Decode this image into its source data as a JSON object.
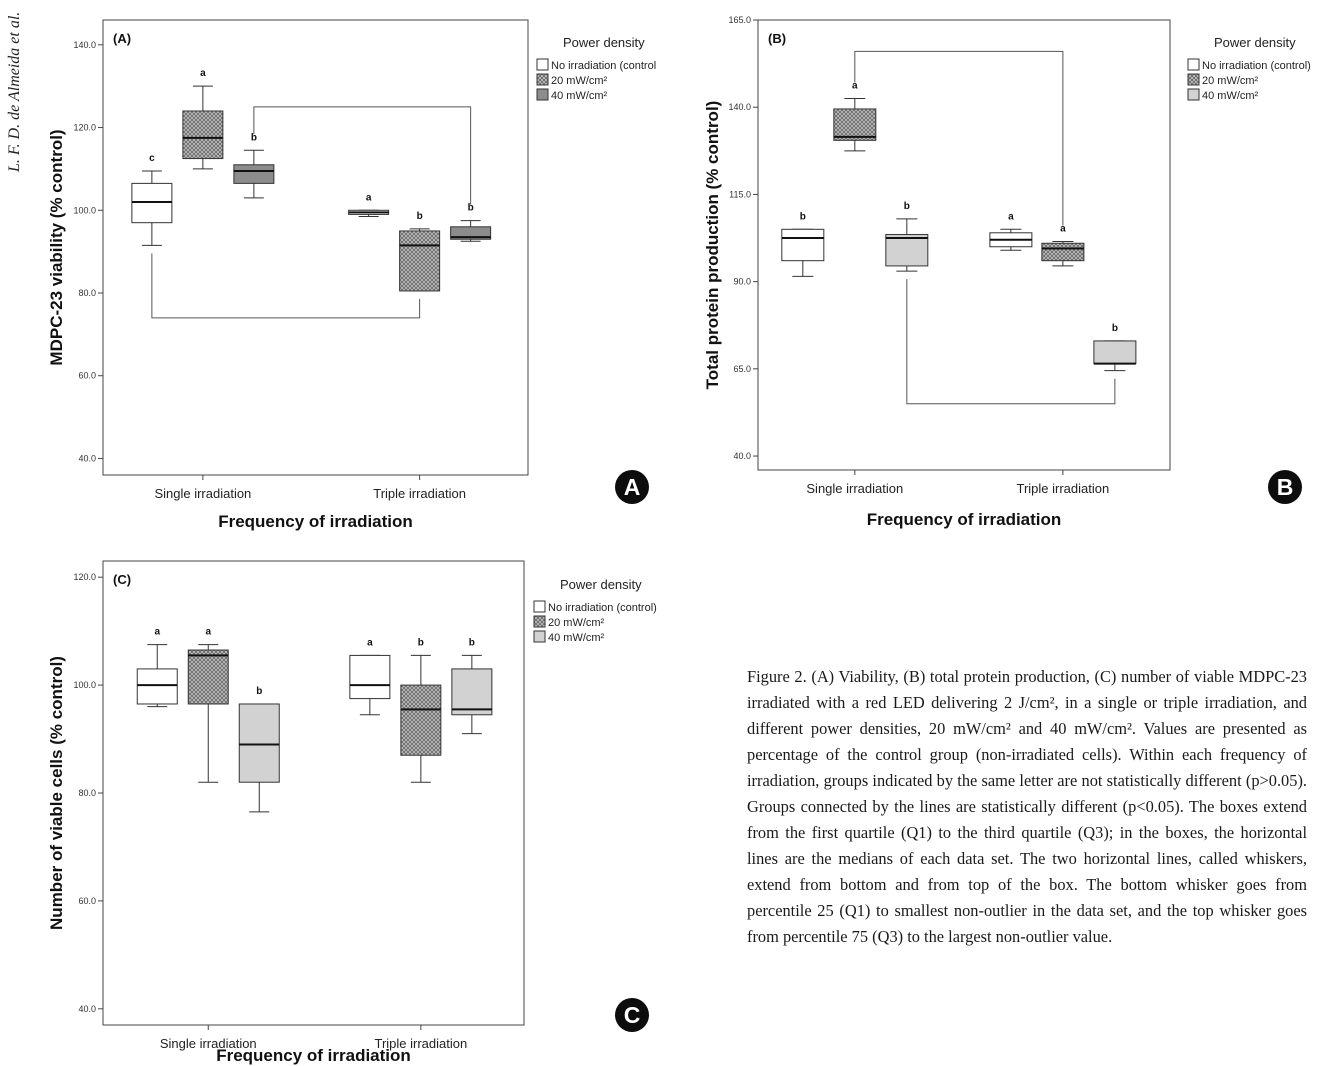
{
  "running_head": "L. F. D. de Almeida et al.",
  "caption": "Figure 2. (A) Viability, (B) total protein production, (C) number of viable MDPC-23 irradiated with a red LED delivering 2 J/cm², in a single or triple irradiation, and different power densities, 20 mW/cm² and 40 mW/cm². Values are presented as percentage of the control group (non-irradiated cells). Within each frequency of irradiation, groups indicated by the same letter are not statistically different (p>0.05). Groups connected by the lines are statistically different (p<0.05). The boxes extend from the first quartile (Q1) to the third quartile (Q3); in the boxes, the horizontal lines are the medians of each data set. The two horizontal lines, called whiskers, extend from bottom and from top of the box. The bottom whisker goes from percentile 25 (Q1) to smallest non-outlier in the data set, and the top whisker goes from percentile 75 (Q3) to the largest non-outlier value.",
  "colors": {
    "control": "#ffffff",
    "mw20": "#bdbdbd",
    "mw40_a": "#8c8c8c",
    "mw40_light": "#d2d2d2",
    "axis": "#555555"
  },
  "chart_data": [
    {
      "type": "box",
      "panel_label": "(A)",
      "corner_badge": "A",
      "xlabel": "Frequency of irradiation",
      "ylabel": "MDPC-23 viability (% control)",
      "ylim": [
        36,
        146
      ],
      "yticks": [
        40.0,
        60.0,
        80.0,
        100.0,
        120.0,
        140.0
      ],
      "categories": [
        "Single irradiation",
        "Triple irradiation"
      ],
      "legend": {
        "title": "Power density",
        "position": "right",
        "entries": [
          "No irradiation (control",
          "20 mW/cm²",
          "40 mW/cm²"
        ]
      },
      "series": [
        {
          "name": "No irradiation (control",
          "fill": "control",
          "boxes": [
            {
              "min": 91.5,
              "q1": 97,
              "median": 102,
              "q3": 106.5,
              "max": 109.5,
              "letter": "c"
            },
            {
              "min": 98.5,
              "q1": 99,
              "median": 99.5,
              "q3": 100,
              "max": 100,
              "letter": "a"
            }
          ]
        },
        {
          "name": "20 mW/cm²",
          "fill": "mw20",
          "hatched": true,
          "boxes": [
            {
              "min": 110,
              "q1": 112.5,
              "median": 117.5,
              "q3": 124,
              "max": 130,
              "letter": "a"
            },
            {
              "min": 80.5,
              "q1": 80.5,
              "median": 91.5,
              "q3": 95,
              "max": 95.5,
              "letter": "b"
            }
          ]
        },
        {
          "name": "40 mW/cm²",
          "fill": "mw40_a",
          "boxes": [
            {
              "min": 103,
              "q1": 106.5,
              "median": 109.5,
              "q3": 111,
              "max": 114.5,
              "letter": "b"
            },
            {
              "min": 92.5,
              "q1": 93,
              "median": 93.5,
              "q3": 96,
              "max": 97.5,
              "letter": "b"
            }
          ]
        }
      ],
      "brackets": [
        {
          "from": [
            2,
            0
          ],
          "to": [
            2,
            1
          ],
          "side": "top",
          "y": 125
        },
        {
          "from": [
            0,
            0
          ],
          "to": [
            1,
            1
          ],
          "side": "bottom",
          "y": 74
        }
      ]
    },
    {
      "type": "box",
      "panel_label": "(B)",
      "corner_badge": "B",
      "xlabel": "Frequency of irradiation",
      "ylabel": "Total protein production (% control)",
      "ylim": [
        36,
        165
      ],
      "yticks": [
        40.0,
        65.0,
        90.0,
        115.0,
        140.0,
        165.0
      ],
      "categories": [
        "Single irradiation",
        "Triple irradiation"
      ],
      "legend": {
        "title": "Power density",
        "position": "right",
        "entries": [
          "No irradiation (control)",
          "20 mW/cm²",
          "40 mW/cm²"
        ]
      },
      "series": [
        {
          "name": "No irradiation (control)",
          "fill": "control",
          "boxes": [
            {
              "min": 91.5,
              "q1": 96,
              "median": 102.5,
              "q3": 105,
              "max": 105,
              "letter": "b"
            },
            {
              "min": 99,
              "q1": 100,
              "median": 102,
              "q3": 104,
              "max": 105,
              "letter": "a"
            }
          ]
        },
        {
          "name": "20 mW/cm²",
          "fill": "mw20",
          "hatched": true,
          "boxes": [
            {
              "min": 127.5,
              "q1": 130.5,
              "median": 131.5,
              "q3": 139.5,
              "max": 142.5,
              "letter": "a"
            },
            {
              "min": 94.5,
              "q1": 96,
              "median": 99.5,
              "q3": 101,
              "max": 101.5,
              "letter": "a"
            }
          ]
        },
        {
          "name": "40 mW/cm²",
          "fill": "mw40_light",
          "boxes": [
            {
              "min": 93,
              "q1": 94.5,
              "median": 102.5,
              "q3": 103.5,
              "max": 108,
              "letter": "b"
            },
            {
              "min": 64.5,
              "q1": 66.5,
              "median": 66.5,
              "q3": 73,
              "max": 73,
              "letter": "b"
            }
          ]
        }
      ],
      "brackets": [
        {
          "from": [
            1,
            0
          ],
          "to": [
            1,
            1
          ],
          "side": "top",
          "y": 156
        },
        {
          "from": [
            2,
            0
          ],
          "to": [
            2,
            1
          ],
          "side": "bottom",
          "y": 55
        }
      ]
    },
    {
      "type": "box",
      "panel_label": "(C)",
      "corner_badge": "C",
      "xlabel": "Frequency of irradiation",
      "ylabel": "Number of viable cells (% control)",
      "ylim": [
        37,
        123
      ],
      "yticks": [
        40.0,
        60.0,
        80.0,
        100.0,
        120.0
      ],
      "categories": [
        "Single irradiation",
        "Triple irradiation"
      ],
      "legend": {
        "title": "Power density",
        "position": "right",
        "entries": [
          "No irradiation (control)",
          "20 mW/cm²",
          "40 mW/cm²"
        ]
      },
      "series": [
        {
          "name": "No irradiation (control)",
          "fill": "control",
          "boxes": [
            {
              "min": 96,
              "q1": 96.5,
              "median": 100,
              "q3": 103,
              "max": 107.5,
              "letter": "a"
            },
            {
              "min": 94.5,
              "q1": 97.5,
              "median": 100,
              "q3": 105.5,
              "max": 105.5,
              "letter": "a"
            }
          ]
        },
        {
          "name": "20 mW/cm²",
          "fill": "mw20",
          "hatched": true,
          "boxes": [
            {
              "min": 82,
              "q1": 96.5,
              "median": 105.5,
              "q3": 106.5,
              "max": 107.5,
              "letter": "a"
            },
            {
              "min": 82,
              "q1": 87,
              "median": 95.5,
              "q3": 100,
              "max": 105.5,
              "letter": "b"
            }
          ]
        },
        {
          "name": "40 mW/cm²",
          "fill": "mw40_light",
          "boxes": [
            {
              "min": 76.5,
              "q1": 82,
              "median": 89,
              "q3": 96.5,
              "max": 96.5,
              "letter": "b"
            },
            {
              "min": 91,
              "q1": 94.5,
              "median": 95.5,
              "q3": 103,
              "max": 105.5,
              "letter": "b"
            }
          ]
        }
      ],
      "brackets": []
    }
  ]
}
